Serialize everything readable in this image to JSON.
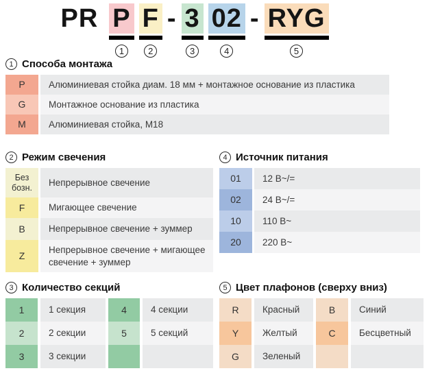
{
  "code": {
    "prefix": "PR",
    "separator": "-",
    "segments": [
      {
        "text": "P",
        "num": "1"
      },
      {
        "text": "F",
        "num": "2"
      },
      {
        "text": "3",
        "num": "3"
      },
      {
        "text": "02",
        "num": "4"
      },
      {
        "text": "RYG",
        "num": "5"
      }
    ]
  },
  "colors": {
    "seg_pink": "#f8c9cc",
    "seg_yellow": "#faf0c6",
    "seg_green": "#c7e5cf",
    "seg_blue": "#b7d4ea",
    "seg_orange": "#fadcba",
    "salmon_dark": "#f3a790",
    "salmon_light": "#f8c7b6",
    "yellow_dark": "#f7eb9d",
    "yellow_light": "#f3f1d1",
    "green_dark": "#92cba3",
    "green_light": "#c6e3cd",
    "blue_dark": "#9db5dc",
    "blue_light": "#bccde9",
    "orange_dark": "#f7c69c",
    "orange_light": "#f4dcc6",
    "desc_dark": "#e9eaeb",
    "desc_light": "#f4f4f5"
  },
  "sections": {
    "s1": {
      "num": "1",
      "title": "Способа монтажа",
      "rows": [
        {
          "key": "P",
          "desc": "Алюминиевая стойка диам. 18 мм + монтажное основание из пластика"
        },
        {
          "key": "G",
          "desc": "Монтажное основание из пластика"
        },
        {
          "key": "M",
          "desc": "Алюминиевая стойка, М18"
        }
      ]
    },
    "s2": {
      "num": "2",
      "title": "Режим свечения",
      "rows": [
        {
          "key": "Без бозн.",
          "desc": "Непрерывное свечение"
        },
        {
          "key": "F",
          "desc": "Мигающее свечение"
        },
        {
          "key": "B",
          "desc": "Непрерывное свечение + зуммер"
        },
        {
          "key": "Z",
          "desc": "Непрерывное свечение + мигающее свечение + зуммер"
        }
      ]
    },
    "s3": {
      "num": "3",
      "title": "Количество секций",
      "left": [
        {
          "key": "1",
          "desc": "1 секция"
        },
        {
          "key": "2",
          "desc": "2 секции"
        },
        {
          "key": "3",
          "desc": "3 секции"
        }
      ],
      "right": [
        {
          "key": "4",
          "desc": "4 секции"
        },
        {
          "key": "5",
          "desc": "5 секций"
        },
        {
          "key": "",
          "desc": ""
        }
      ]
    },
    "s4": {
      "num": "4",
      "title": "Источник питания",
      "rows": [
        {
          "key": "01",
          "desc": "12 В~/="
        },
        {
          "key": "02",
          "desc": "24 В~/="
        },
        {
          "key": "10",
          "desc": "110 В~"
        },
        {
          "key": "20",
          "desc": "220 В~"
        }
      ]
    },
    "s5": {
      "num": "5",
      "title": "Цвет плафонов (сверху вниз)",
      "left": [
        {
          "key": "R",
          "desc": "Красный"
        },
        {
          "key": "Y",
          "desc": "Желтый"
        },
        {
          "key": "G",
          "desc": "Зеленый"
        }
      ],
      "right": [
        {
          "key": "B",
          "desc": "Синий"
        },
        {
          "key": "C",
          "desc": "Бесцветный"
        },
        {
          "key": "",
          "desc": ""
        }
      ]
    }
  }
}
